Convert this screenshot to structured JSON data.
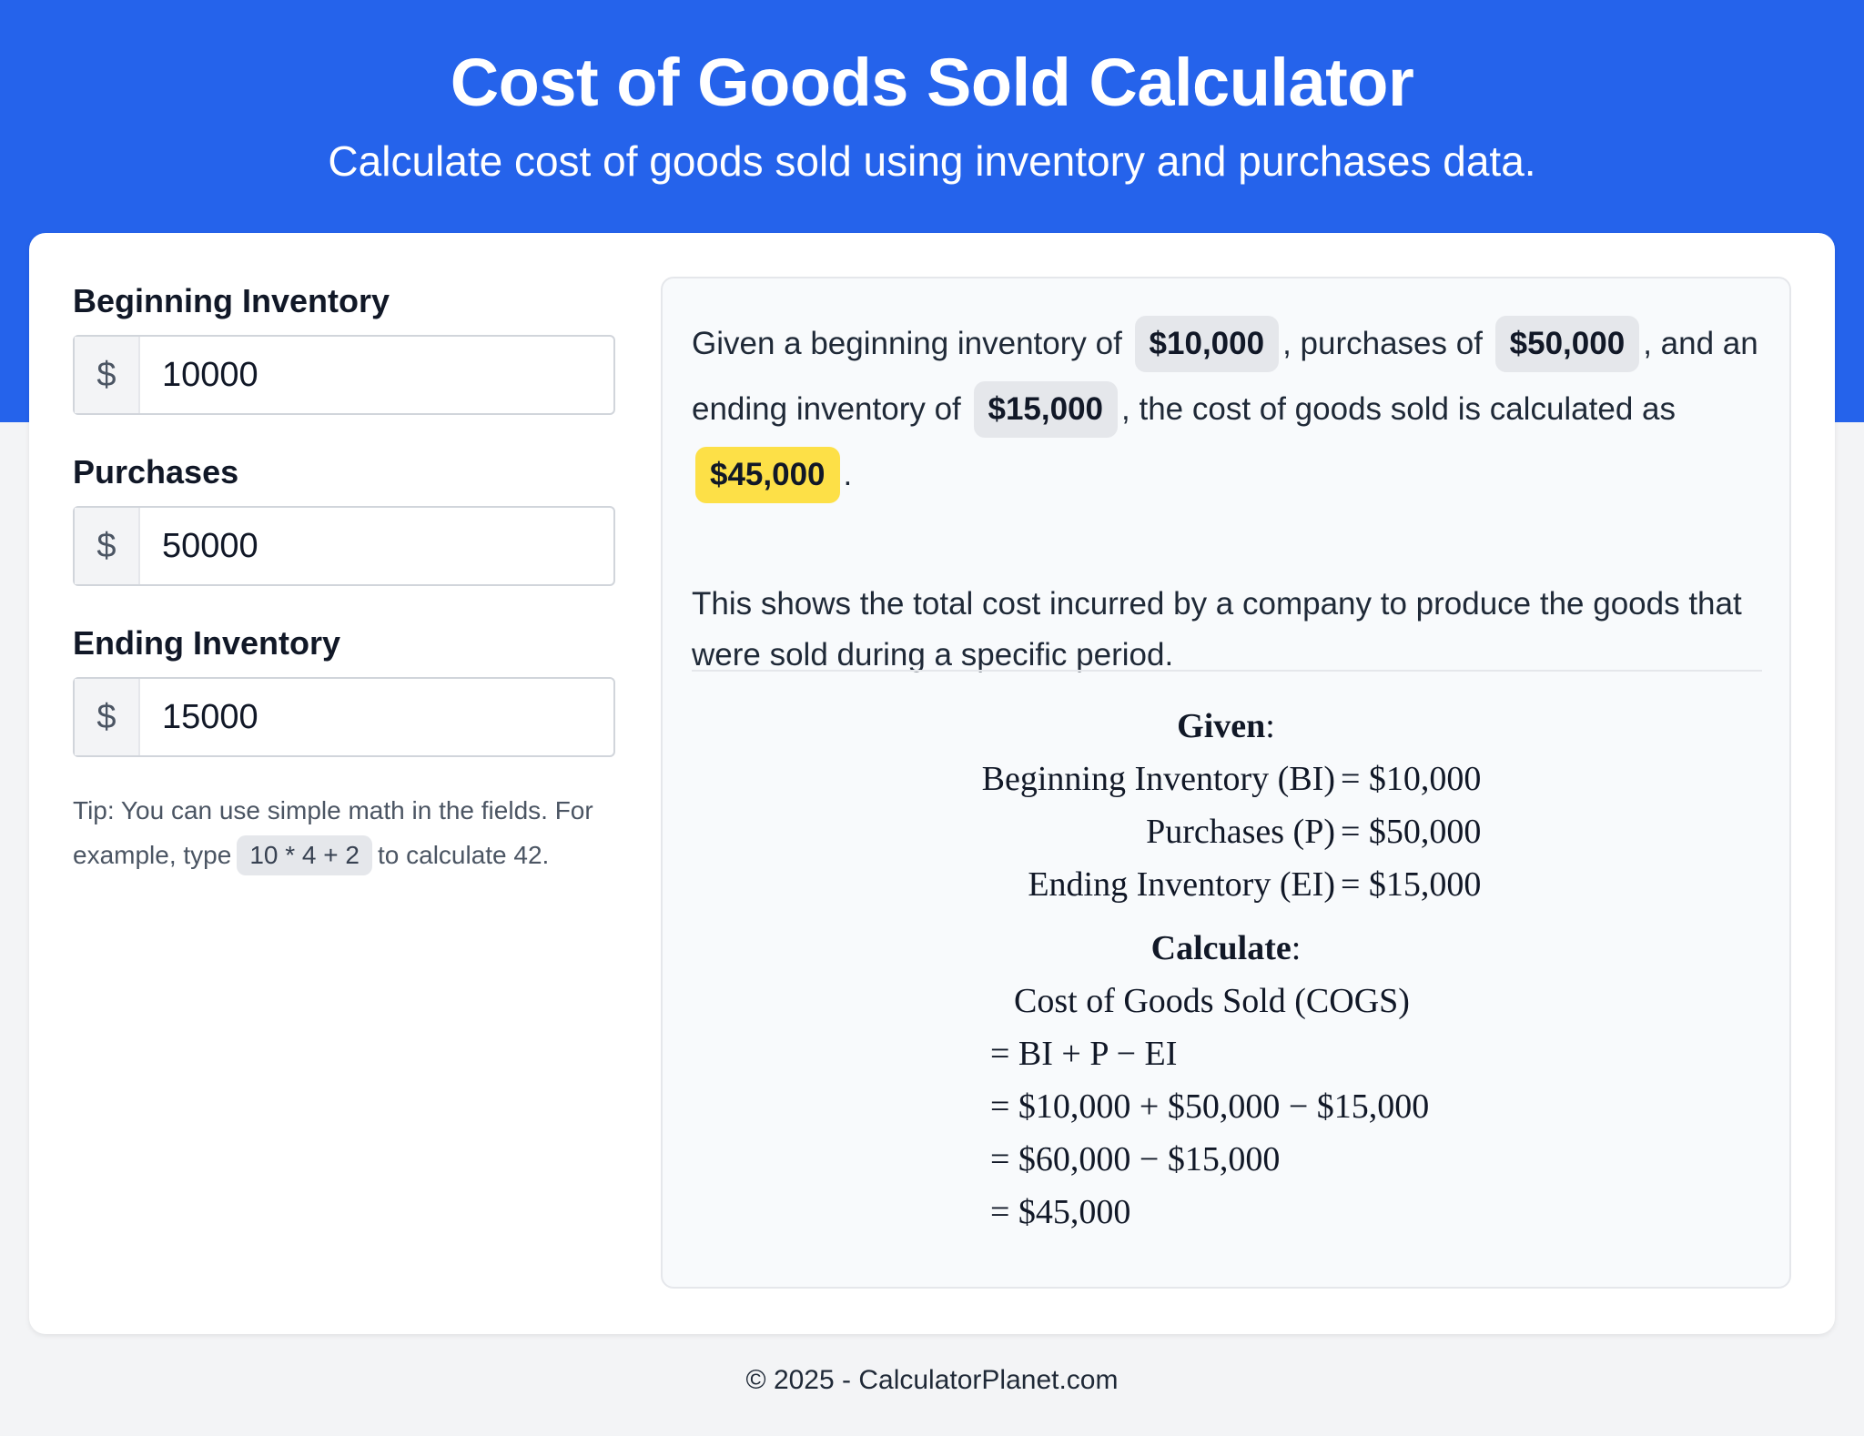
{
  "header": {
    "title": "Cost of Goods Sold Calculator",
    "subtitle": "Calculate cost of goods sold using inventory and purchases data."
  },
  "inputs": [
    {
      "label": "Beginning Inventory",
      "prefix": "$",
      "value": "10000"
    },
    {
      "label": "Purchases",
      "prefix": "$",
      "value": "50000"
    },
    {
      "label": "Ending Inventory",
      "prefix": "$",
      "value": "15000"
    }
  ],
  "tip": {
    "before": "Tip: You can use simple math in the fields. For example, type",
    "code": "10 * 4 + 2",
    "after": "to calculate 42."
  },
  "result": {
    "sentence": {
      "p1": "Given a beginning inventory of",
      "bi": "$10,000",
      "p2": ", purchases of",
      "purchases": "$50,000",
      "p3": ", and an ending inventory of",
      "ei": "$15,000",
      "p4": ", the cost of goods sold is calculated as",
      "cogs": "$45,000",
      "p5": "."
    },
    "explanation": "This shows the total cost incurred by a company to produce the goods that were sold during a specific period."
  },
  "math": {
    "given_heading": "Given",
    "given": [
      {
        "lhs": "Beginning Inventory (BI)",
        "rhs": "= $10,000"
      },
      {
        "lhs": "Purchases (P)",
        "rhs": "= $50,000"
      },
      {
        "lhs": "Ending Inventory (EI)",
        "rhs": "= $15,000"
      }
    ],
    "calc_heading": "Calculate",
    "steps": [
      "Cost of Goods Sold (COGS)",
      "= BI + P − EI",
      "= $10,000 + $50,000 − $15,000",
      "= $60,000 − $15,000",
      "= $45,000"
    ]
  },
  "footer": {
    "text": "© 2025 - CalculatorPlanet.com"
  }
}
